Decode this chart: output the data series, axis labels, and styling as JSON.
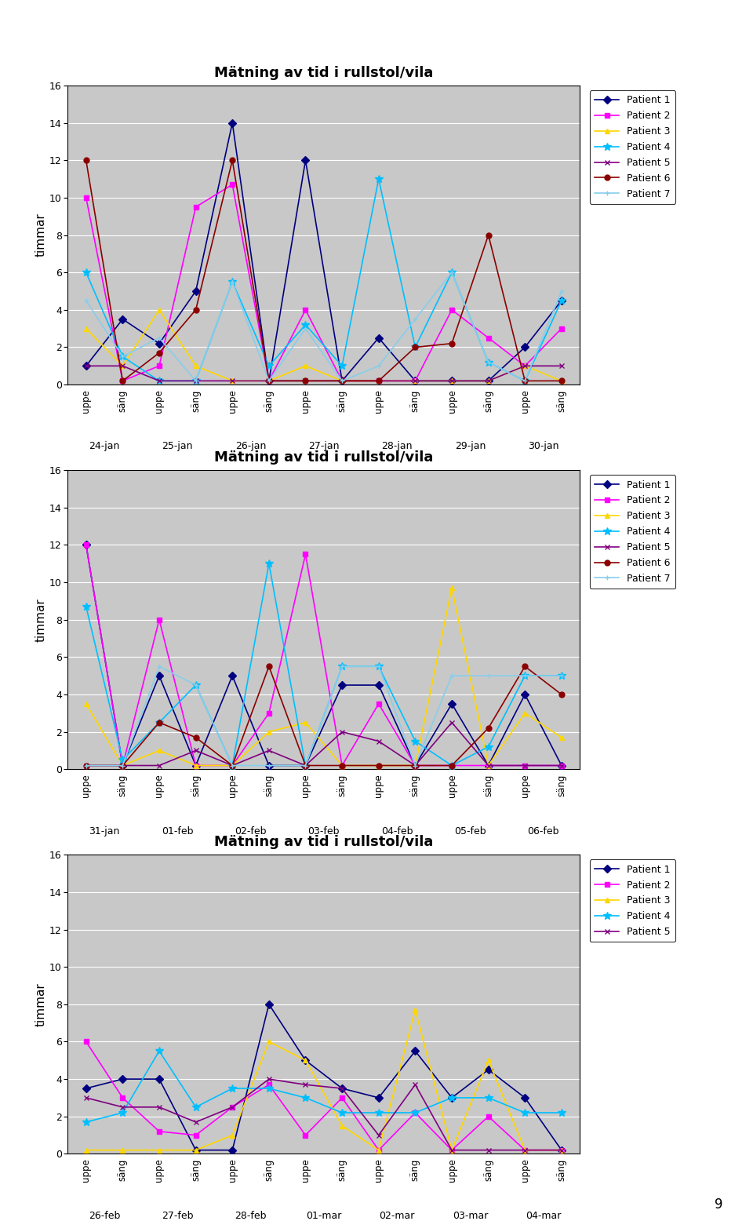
{
  "title": "Mätning av tid i rullstol/vila",
  "ylabel": "timmar",
  "ylim": [
    0,
    16
  ],
  "yticks": [
    0,
    2,
    4,
    6,
    8,
    10,
    12,
    14,
    16
  ],
  "chart_bg": "#c8c8c8",
  "page_bg": "#ffffff",
  "chart1": {
    "days": [
      "24-jan",
      "25-jan",
      "26-jan",
      "27-jan",
      "28-jan",
      "29-jan",
      "30-jan"
    ],
    "patients": {
      "Patient 1": [
        1,
        3.5,
        2.2,
        5,
        14,
        0.2,
        12,
        0.2,
        2.5,
        0.2,
        0.2,
        0.2,
        2,
        4.5
      ],
      "Patient 2": [
        10,
        0.2,
        1,
        9.5,
        10.7,
        0.2,
        4,
        0.2,
        0.2,
        0.2,
        4,
        2.5,
        1,
        3
      ],
      "Patient 3": [
        3,
        1,
        4,
        1,
        0.2,
        0.2,
        1,
        0.2,
        0.2,
        0.2,
        0.2,
        0.2,
        1,
        0.2
      ],
      "Patient 4": [
        6,
        1.5,
        0.2,
        0.2,
        5.5,
        1,
        3.2,
        1,
        11,
        2,
        6,
        1.2,
        0.2,
        4.5
      ],
      "Patient 5": [
        1,
        1,
        0.2,
        0.2,
        0.2,
        0.2,
        0.2,
        0.2,
        0.2,
        0.2,
        0.2,
        0.2,
        1,
        1
      ],
      "Patient 6": [
        12,
        0.2,
        1.7,
        4,
        12,
        0.2,
        0.2,
        0.2,
        0.2,
        2,
        2.2,
        8,
        0.2,
        0.2
      ],
      "Patient 7": [
        4.5,
        1.5,
        2.5,
        0.2,
        5.5,
        0.2,
        3,
        0.2,
        1,
        3.5,
        6,
        1.2,
        0.2,
        5
      ]
    }
  },
  "chart2": {
    "days": [
      "31-jan",
      "01-feb",
      "02-feb",
      "03-feb",
      "04-feb",
      "05-feb",
      "06-feb"
    ],
    "patients": {
      "Patient 1": [
        12,
        0.2,
        5,
        0.2,
        5,
        0.2,
        0.2,
        4.5,
        4.5,
        0.2,
        3.5,
        0.2,
        4,
        0.2
      ],
      "Patient 2": [
        12,
        0.2,
        8,
        0.2,
        0.2,
        3,
        11.5,
        0.2,
        3.5,
        0.2,
        0.2,
        0.2,
        0.2,
        0.2
      ],
      "Patient 3": [
        3.5,
        0.2,
        1,
        0.2,
        0.2,
        2,
        2.5,
        0.2,
        0.2,
        0.2,
        9.7,
        0.2,
        3,
        1.7
      ],
      "Patient 4": [
        8.7,
        0.5,
        2.5,
        4.5,
        0.2,
        11,
        0.2,
        5.5,
        5.5,
        1.5,
        0.2,
        1.2,
        5,
        5
      ],
      "Patient 5": [
        0.2,
        0.2,
        0.2,
        1,
        0.2,
        1,
        0.2,
        2,
        1.5,
        0.2,
        2.5,
        0.2,
        0.2,
        0.2
      ],
      "Patient 6": [
        0.2,
        0.2,
        2.5,
        1.7,
        0.2,
        5.5,
        0.2,
        0.2,
        0.2,
        0.2,
        0.2,
        2.2,
        5.5,
        4
      ],
      "Patient 7": [
        0.2,
        0.2,
        5.5,
        4.5,
        0.2,
        0.2,
        0.2,
        5.5,
        5.5,
        0.2,
        5,
        5,
        5,
        5
      ]
    }
  },
  "chart3": {
    "days": [
      "26-feb",
      "27-feb",
      "28-feb",
      "01-mar",
      "02-mar",
      "03-mar",
      "04-mar"
    ],
    "patients": {
      "Patient 1": [
        3.5,
        4,
        4,
        0.2,
        0.2,
        8,
        5,
        3.5,
        3,
        5.5,
        3,
        4.5,
        3,
        0.2
      ],
      "Patient 2": [
        6,
        3,
        1.2,
        1,
        2.5,
        3.7,
        1,
        3,
        0.2,
        2.2,
        0.2,
        2,
        0.2,
        0.2
      ],
      "Patient 3": [
        0.2,
        0.2,
        0.2,
        0.2,
        1,
        6,
        5,
        1.5,
        0.2,
        7.7,
        0.2,
        5,
        0.2,
        0.2
      ],
      "Patient 4": [
        1.7,
        2.2,
        5.5,
        2.5,
        3.5,
        3.5,
        3,
        2.2,
        2.2,
        2.2,
        3,
        3,
        2.2,
        2.2
      ],
      "Patient 5": [
        3,
        2.5,
        2.5,
        1.7,
        2.5,
        4,
        3.7,
        3.5,
        1,
        3.7,
        0.2,
        0.2,
        0.2,
        0.2
      ]
    }
  },
  "colors": {
    "Patient 1": "#000080",
    "Patient 2": "#ff00ff",
    "Patient 3": "#ffd700",
    "Patient 4": "#00bfff",
    "Patient 5": "#800080",
    "Patient 6": "#8b0000",
    "Patient 7": "#87ceeb"
  },
  "markers": {
    "Patient 1": "D",
    "Patient 2": "s",
    "Patient 3": "^",
    "Patient 4": "*",
    "Patient 5": "x",
    "Patient 6": "o",
    "Patient 7": "+"
  },
  "patients_7": [
    "Patient 1",
    "Patient 2",
    "Patient 3",
    "Patient 4",
    "Patient 5",
    "Patient 6",
    "Patient 7"
  ],
  "patients_5": [
    "Patient 1",
    "Patient 2",
    "Patient 3",
    "Patient 4",
    "Patient 5"
  ],
  "page_number": "9"
}
